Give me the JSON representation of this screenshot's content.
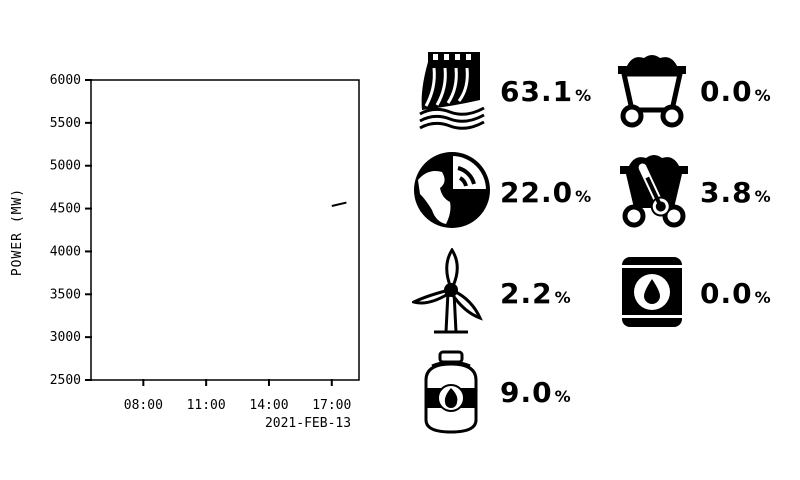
{
  "chart_data": {
    "type": "line",
    "title": "",
    "ylabel": "POWER (MW)",
    "xlabel": "2021-FEB-13",
    "ylim": [
      2500,
      6000
    ],
    "yticks": [
      6000,
      5500,
      5000,
      4500,
      4000,
      3500,
      3000,
      2500
    ],
    "xlim_hours": [
      5.5,
      18.3
    ],
    "xticks": [
      {
        "hour": 8,
        "label": "08:00"
      },
      {
        "hour": 11,
        "label": "11:00"
      },
      {
        "hour": 14,
        "label": "14:00"
      },
      {
        "hour": 17,
        "label": "17:00"
      }
    ],
    "series": [
      {
        "values": [
          [
            17.0,
            4530
          ],
          [
            17.7,
            4570
          ]
        ]
      }
    ],
    "grid": false
  },
  "sources": [
    {
      "icon": "hydro-dam-icon",
      "value": "63.1",
      "unit": "%"
    },
    {
      "icon": "coal-cart-icon",
      "value": "0.0",
      "unit": "%"
    },
    {
      "icon": "nuclear-globe-icon",
      "value": "22.0",
      "unit": "%"
    },
    {
      "icon": "biomass-cart-icon",
      "value": "3.8",
      "unit": "%"
    },
    {
      "icon": "wind-turbine-icon",
      "value": "2.2",
      "unit": "%"
    },
    {
      "icon": "oil-barrel-icon",
      "value": "0.0",
      "unit": "%"
    },
    {
      "icon": "gas-cylinder-icon",
      "value": "9.0",
      "unit": "%"
    }
  ]
}
